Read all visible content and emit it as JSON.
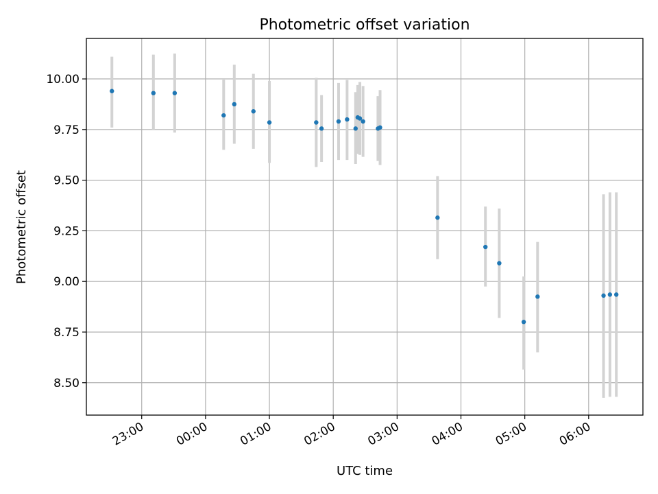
{
  "chart_data": {
    "type": "scatter",
    "title": "Photometric offset variation",
    "xlabel": "UTC time",
    "ylabel": "Photometric offset",
    "xlim": [
      "2023-01-01T22:08:00",
      "2023-01-02T06:51:00"
    ],
    "ylim": [
      8.34,
      10.2
    ],
    "grid": true,
    "x_ticks": [
      "2023-01-01T23:00:00",
      "2023-01-02T00:00:00",
      "2023-01-02T01:00:00",
      "2023-01-02T02:00:00",
      "2023-01-02T03:00:00",
      "2023-01-02T04:00:00",
      "2023-01-02T05:00:00",
      "2023-01-02T06:00:00"
    ],
    "x_tick_labels": [
      "23:00",
      "00:00",
      "01:00",
      "02:00",
      "03:00",
      "04:00",
      "05:00",
      "06:00"
    ],
    "y_ticks": [
      8.5,
      8.75,
      9.0,
      9.25,
      9.5,
      9.75,
      10.0
    ],
    "y_tick_labels": [
      "8.50",
      "8.75",
      "9.00",
      "9.25",
      "9.50",
      "9.75",
      "10.00"
    ],
    "marker_color": "#1f77b4",
    "errorbar_color": "#d3d3d3",
    "points": [
      {
        "x": "2023-01-01T22:32:00",
        "y": 9.94,
        "ylow": 9.76,
        "yhigh": 10.11
      },
      {
        "x": "2023-01-01T23:11:00",
        "y": 9.93,
        "ylow": 9.75,
        "yhigh": 10.12
      },
      {
        "x": "2023-01-01T23:31:00",
        "y": 9.93,
        "ylow": 9.735,
        "yhigh": 10.125
      },
      {
        "x": "2023-01-02T00:17:00",
        "y": 9.82,
        "ylow": 9.65,
        "yhigh": 10.0
      },
      {
        "x": "2023-01-02T00:27:00",
        "y": 9.875,
        "ylow": 9.68,
        "yhigh": 10.07
      },
      {
        "x": "2023-01-02T00:45:00",
        "y": 9.84,
        "ylow": 9.655,
        "yhigh": 10.025
      },
      {
        "x": "2023-01-02T01:00:00",
        "y": 9.785,
        "ylow": 9.585,
        "yhigh": 9.99
      },
      {
        "x": "2023-01-02T01:44:00",
        "y": 9.785,
        "ylow": 9.565,
        "yhigh": 10.005
      },
      {
        "x": "2023-01-02T01:49:00",
        "y": 9.755,
        "ylow": 9.59,
        "yhigh": 9.92
      },
      {
        "x": "2023-01-02T02:05:00",
        "y": 9.79,
        "ylow": 9.6,
        "yhigh": 9.98
      },
      {
        "x": "2023-01-02T02:13:00",
        "y": 9.8,
        "ylow": 9.6,
        "yhigh": 9.995
      },
      {
        "x": "2023-01-02T02:21:00",
        "y": 9.755,
        "ylow": 9.58,
        "yhigh": 9.935
      },
      {
        "x": "2023-01-02T02:23:00",
        "y": 9.81,
        "ylow": 9.63,
        "yhigh": 9.97
      },
      {
        "x": "2023-01-02T02:25:00",
        "y": 9.805,
        "ylow": 9.625,
        "yhigh": 9.985
      },
      {
        "x": "2023-01-02T02:28:00",
        "y": 9.79,
        "ylow": 9.615,
        "yhigh": 9.965
      },
      {
        "x": "2023-01-02T02:42:00",
        "y": 9.755,
        "ylow": 9.595,
        "yhigh": 9.915
      },
      {
        "x": "2023-01-02T02:44:00",
        "y": 9.76,
        "ylow": 9.575,
        "yhigh": 9.945
      },
      {
        "x": "2023-01-02T03:38:00",
        "y": 9.315,
        "ylow": 9.11,
        "yhigh": 9.52
      },
      {
        "x": "2023-01-02T04:23:00",
        "y": 9.17,
        "ylow": 8.975,
        "yhigh": 9.37
      },
      {
        "x": "2023-01-02T04:36:00",
        "y": 9.09,
        "ylow": 8.82,
        "yhigh": 9.36
      },
      {
        "x": "2023-01-02T04:59:00",
        "y": 8.8,
        "ylow": 8.565,
        "yhigh": 9.025
      },
      {
        "x": "2023-01-02T05:12:00",
        "y": 8.925,
        "ylow": 8.65,
        "yhigh": 9.195
      },
      {
        "x": "2023-01-02T06:14:00",
        "y": 8.93,
        "ylow": 8.425,
        "yhigh": 9.43
      },
      {
        "x": "2023-01-02T06:20:00",
        "y": 8.935,
        "ylow": 8.43,
        "yhigh": 9.44
      },
      {
        "x": "2023-01-02T06:26:00",
        "y": 8.935,
        "ylow": 8.43,
        "yhigh": 9.44
      }
    ]
  }
}
